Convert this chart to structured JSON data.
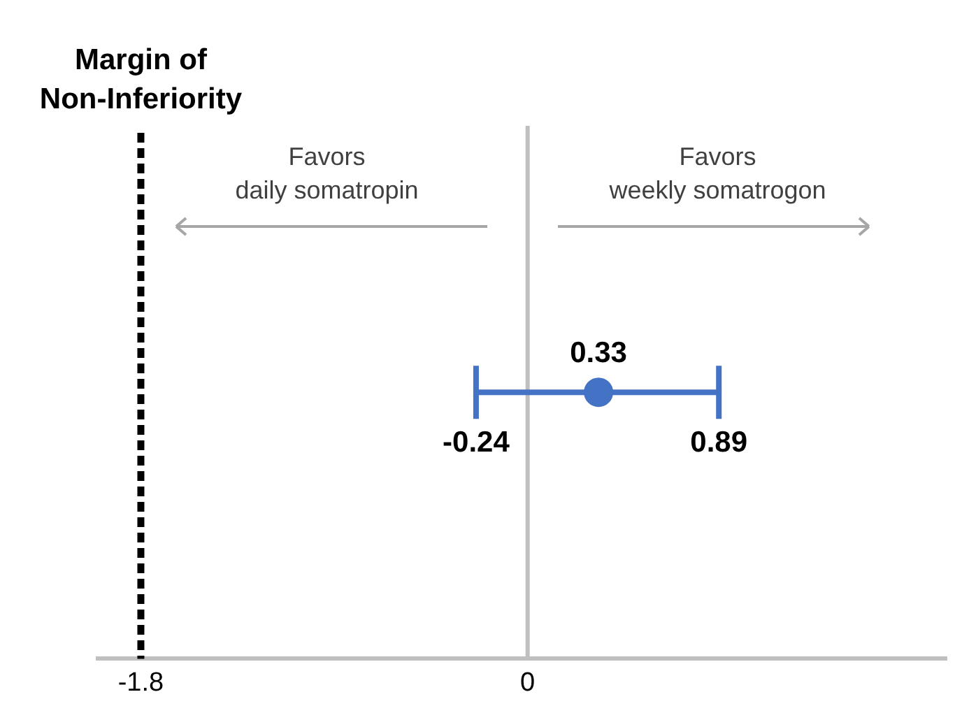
{
  "chart_data": {
    "type": "scatter",
    "orientation": "horizontal",
    "categories": [
      null
    ],
    "values": [
      0.33
    ],
    "errors": [
      [
        -0.24,
        0.89
      ]
    ],
    "color": "#4472c4",
    "data_labels": true,
    "xlim": [
      -2,
      1.95
    ],
    "xticks": [
      -1.8,
      0
    ],
    "grid": false,
    "legend": false,
    "tick_labels": "x",
    "ref_lines": [
      {
        "axis": "x",
        "value": -1.8,
        "label": "Margin of Non-Inferiority",
        "color": "#000000",
        "line_style": "dashed"
      },
      {
        "axis": "x",
        "value": 0,
        "label": null,
        "color": "#bfbfbf",
        "line_style": "solid"
      }
    ],
    "annotations": [
      "Favors\ndaily somatropin",
      "Favors\nweekly somatrogon",
      "-0.24",
      "0.89"
    ]
  }
}
